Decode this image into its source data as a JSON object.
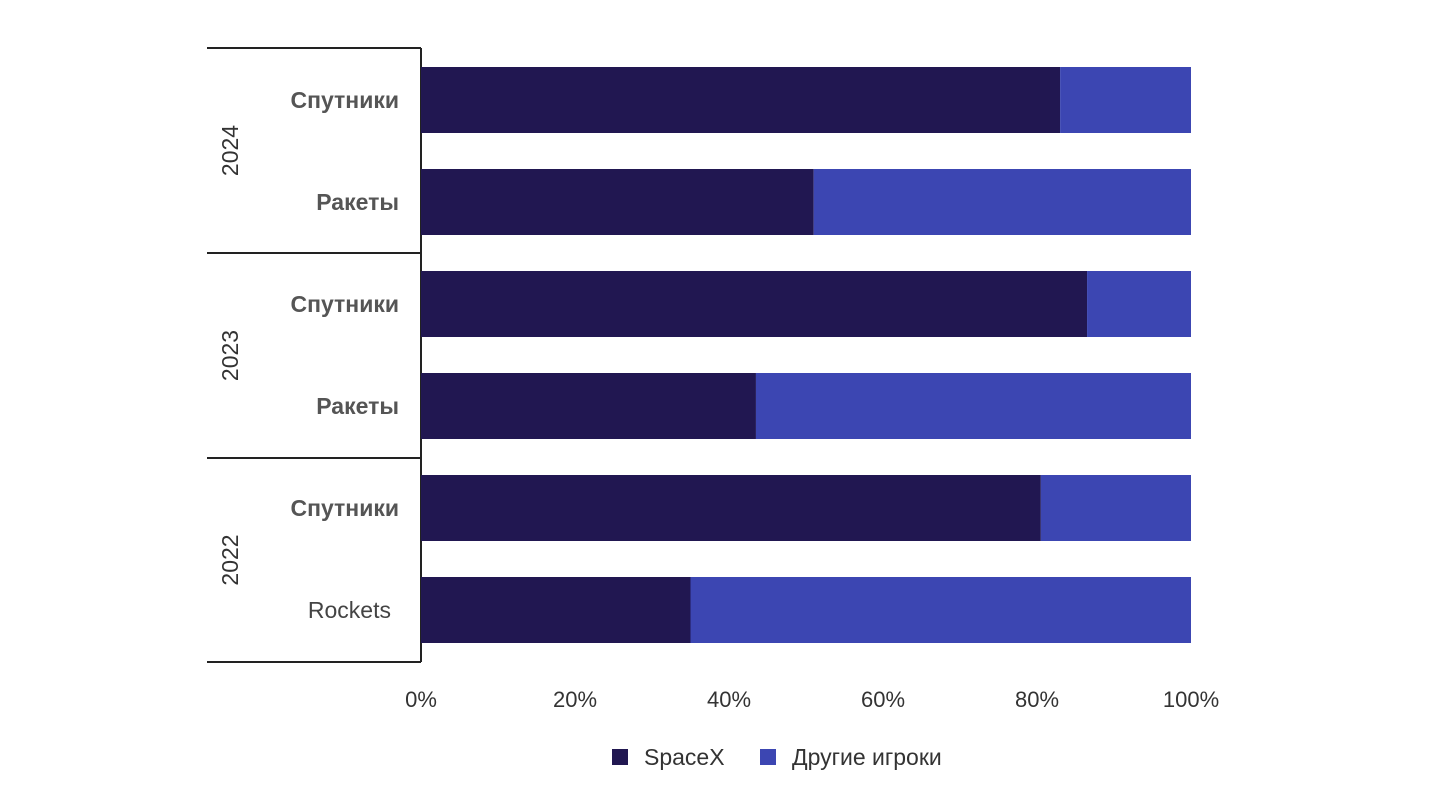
{
  "chart_data": {
    "type": "bar",
    "orientation": "horizontal",
    "stacked": true,
    "groups": [
      {
        "year": "2024",
        "rows": [
          {
            "category": "Спутники",
            "values": [
              83,
              17
            ]
          },
          {
            "category": "Ракеты",
            "values": [
              51,
              49
            ]
          }
        ]
      },
      {
        "year": "2023",
        "rows": [
          {
            "category": "Спутники",
            "values": [
              86.5,
              13.5
            ]
          },
          {
            "category": "Ракеты",
            "values": [
              43.5,
              56.5
            ]
          }
        ]
      },
      {
        "year": "2022",
        "rows": [
          {
            "category": "Спутники",
            "values": [
              80.5,
              19.5
            ]
          },
          {
            "category": "Rockets",
            "values": [
              35,
              65
            ]
          }
        ]
      }
    ],
    "series": [
      {
        "name": "SpaceX",
        "color": "#211751"
      },
      {
        "name": "Другие игроки",
        "color": "#3c46b2"
      }
    ],
    "xticks": [
      "0%",
      "20%",
      "40%",
      "60%",
      "80%",
      "100%"
    ],
    "xlim": [
      0,
      100
    ],
    "legend": "bottom",
    "grid": false
  }
}
